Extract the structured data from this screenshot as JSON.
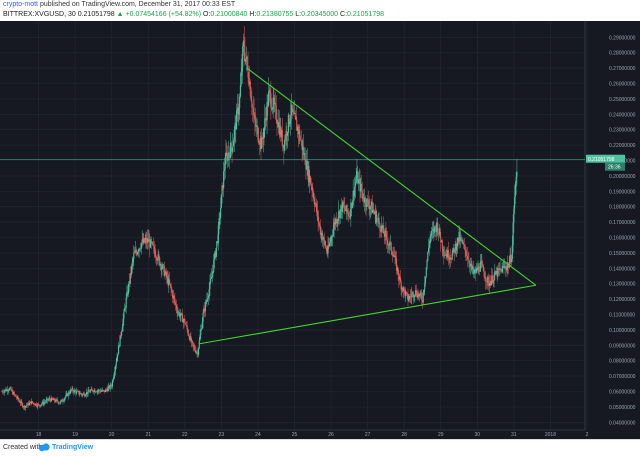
{
  "header": {
    "author": "crypto-mott",
    "published_text": "published on TradingView.com, December 31, 2017 00:33 EST",
    "symbol": "BITTREX:XVGUSD, 30",
    "last": "0.21051798",
    "change": "▲ +0.07454166 (+54.82%)",
    "o_label": "O:",
    "o_value": "0.21000840",
    "h_label": "H:",
    "h_value": "0.21380755",
    "l_label": "L:",
    "l_value": "0.20345000",
    "c_label": "C:",
    "c_value": "0.21051798"
  },
  "footer": {
    "created_with": "Created with",
    "brand": "TradingView"
  },
  "colors": {
    "background": "#161922",
    "up": "#4fc3a1",
    "down": "#e0605a",
    "trendline": "#43d62f",
    "grid": "#242833",
    "axis_text": "#9ba3b4",
    "price_label_bg": "#4fc3a1"
  },
  "chart_data": {
    "type": "candlestick",
    "title": "BITTREX:XVGUSD, 30",
    "x_ticks": [
      "18",
      "19",
      "20",
      "21",
      "22",
      "23",
      "24",
      "25",
      "26",
      "27",
      "28",
      "29",
      "30",
      "31",
      "2018",
      "2"
    ],
    "x_range_days": [
      17.0,
      33.0
    ],
    "y_ticks": [
      0.04,
      0.05,
      0.06,
      0.07,
      0.08,
      0.09,
      0.1,
      0.11,
      0.12,
      0.13,
      0.14,
      0.15,
      0.16,
      0.17,
      0.18,
      0.19,
      0.2,
      0.21,
      0.22,
      0.23,
      0.24,
      0.25,
      0.26,
      0.27,
      0.28,
      0.29
    ],
    "ylim": [
      0.035,
      0.298
    ],
    "current_price_label": "0.21051798",
    "countdown_label": "26:36",
    "current_price": 0.21051798,
    "path_points": [
      [
        17.0,
        0.06
      ],
      [
        17.2,
        0.062
      ],
      [
        17.4,
        0.056
      ],
      [
        17.6,
        0.05
      ],
      [
        17.8,
        0.053
      ],
      [
        18.0,
        0.051
      ],
      [
        18.3,
        0.055
      ],
      [
        18.6,
        0.053
      ],
      [
        18.9,
        0.061
      ],
      [
        19.2,
        0.058
      ],
      [
        19.5,
        0.061
      ],
      [
        19.8,
        0.06
      ],
      [
        20.0,
        0.064
      ],
      [
        20.2,
        0.09
      ],
      [
        20.4,
        0.12
      ],
      [
        20.6,
        0.148
      ],
      [
        20.8,
        0.156
      ],
      [
        21.0,
        0.158
      ],
      [
        21.2,
        0.15
      ],
      [
        21.4,
        0.14
      ],
      [
        21.6,
        0.128
      ],
      [
        21.8,
        0.112
      ],
      [
        22.0,
        0.105
      ],
      [
        22.2,
        0.09
      ],
      [
        22.35,
        0.085
      ],
      [
        22.5,
        0.11
      ],
      [
        22.7,
        0.13
      ],
      [
        22.9,
        0.16
      ],
      [
        23.1,
        0.21
      ],
      [
        23.3,
        0.22
      ],
      [
        23.5,
        0.25
      ],
      [
        23.6,
        0.285
      ],
      [
        23.75,
        0.265
      ],
      [
        23.9,
        0.235
      ],
      [
        24.1,
        0.22
      ],
      [
        24.3,
        0.253
      ],
      [
        24.5,
        0.24
      ],
      [
        24.7,
        0.22
      ],
      [
        24.9,
        0.242
      ],
      [
        25.1,
        0.23
      ],
      [
        25.3,
        0.21
      ],
      [
        25.5,
        0.19
      ],
      [
        25.7,
        0.165
      ],
      [
        25.9,
        0.15
      ],
      [
        26.1,
        0.17
      ],
      [
        26.3,
        0.18
      ],
      [
        26.5,
        0.175
      ],
      [
        26.7,
        0.2
      ],
      [
        26.9,
        0.185
      ],
      [
        27.1,
        0.18
      ],
      [
        27.3,
        0.17
      ],
      [
        27.5,
        0.16
      ],
      [
        27.7,
        0.15
      ],
      [
        27.9,
        0.13
      ],
      [
        28.1,
        0.12
      ],
      [
        28.3,
        0.125
      ],
      [
        28.5,
        0.12
      ],
      [
        28.7,
        0.16
      ],
      [
        28.9,
        0.168
      ],
      [
        29.1,
        0.15
      ],
      [
        29.3,
        0.148
      ],
      [
        29.5,
        0.16
      ],
      [
        29.7,
        0.15
      ],
      [
        29.9,
        0.136
      ],
      [
        30.1,
        0.142
      ],
      [
        30.3,
        0.13
      ],
      [
        30.5,
        0.136
      ],
      [
        30.7,
        0.14
      ],
      [
        30.85,
        0.142
      ],
      [
        30.95,
        0.15
      ],
      [
        31.0,
        0.18
      ],
      [
        31.05,
        0.195
      ],
      [
        31.1,
        0.21
      ]
    ],
    "trendlines": [
      {
        "name": "upper",
        "from": [
          23.7,
          0.27
        ],
        "to": [
          31.6,
          0.129
        ]
      },
      {
        "name": "lower",
        "from": [
          22.4,
          0.091
        ],
        "to": [
          31.6,
          0.129
        ]
      }
    ]
  }
}
